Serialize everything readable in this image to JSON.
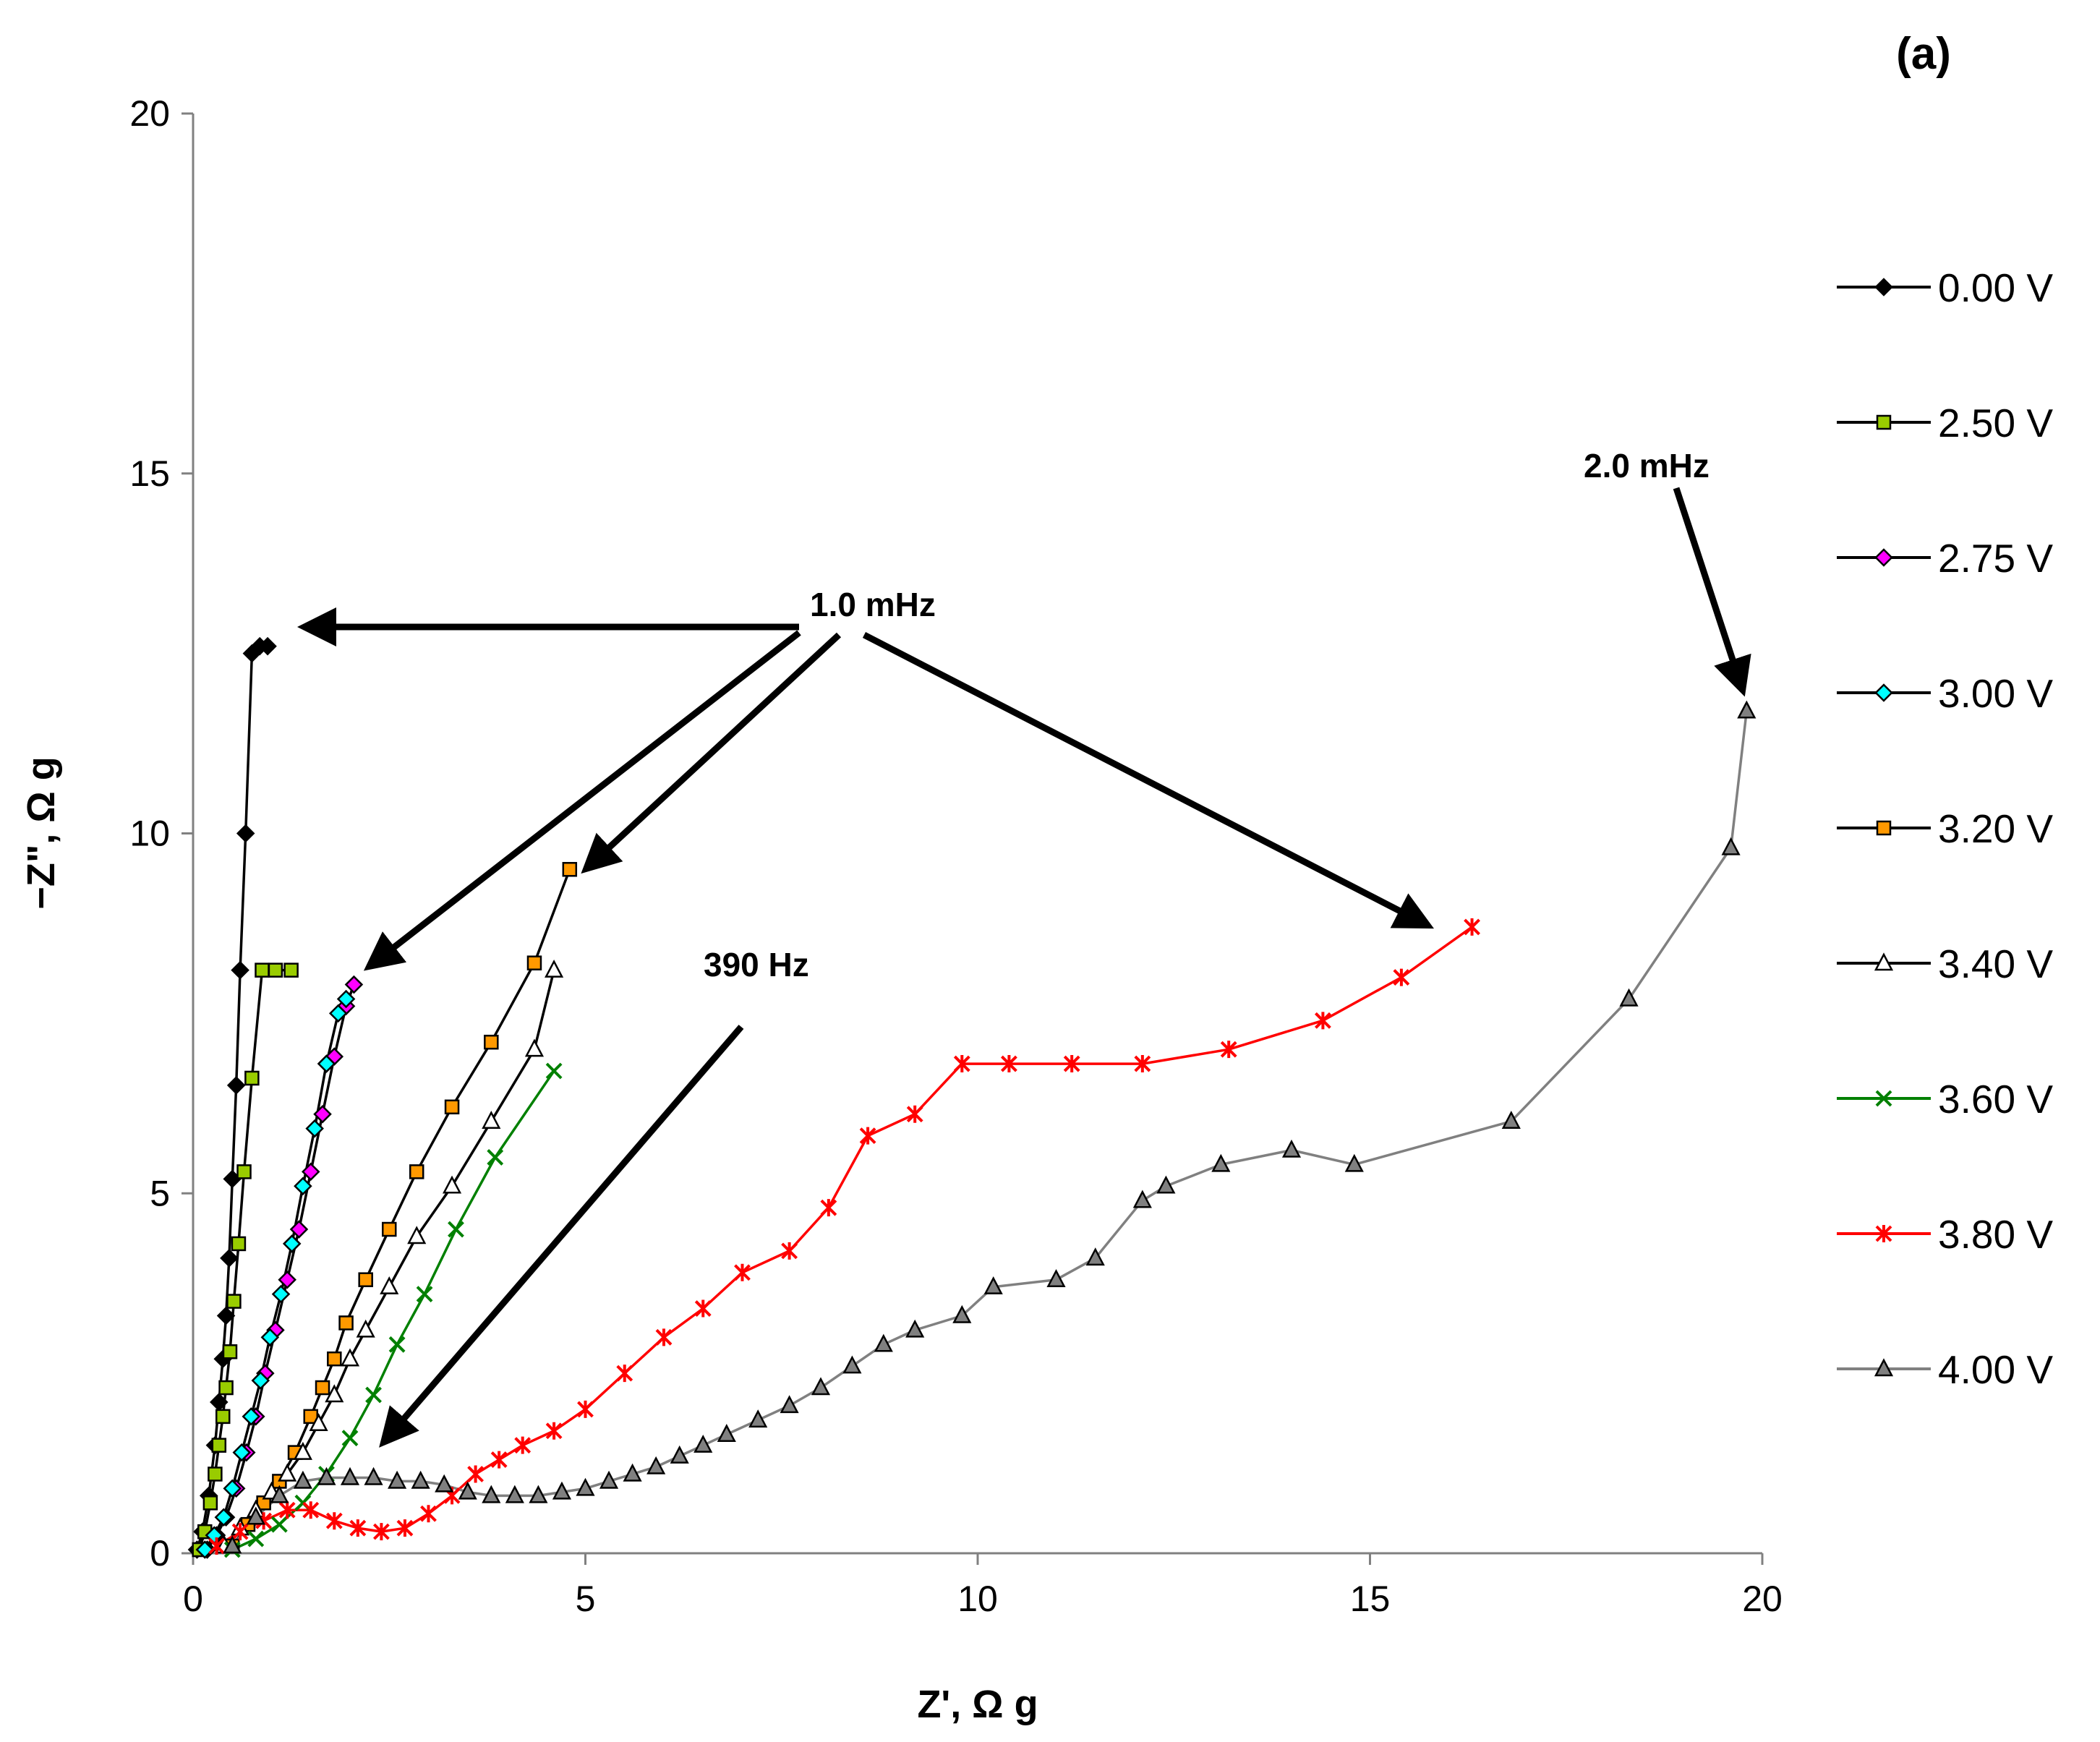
{
  "chart_data": {
    "type": "scatter",
    "panel_label": "(a)",
    "xlabel": "Z', Ω g",
    "ylabel": "−Z\", Ω g",
    "xlim": [
      0,
      20
    ],
    "ylim": [
      0,
      20
    ],
    "x_ticks": [
      0,
      5,
      10,
      15,
      20
    ],
    "y_ticks": [
      0,
      5,
      10,
      15,
      20
    ],
    "grid": false,
    "legend_position": "right",
    "series": [
      {
        "name": "0.00 V",
        "color": "#000000",
        "marker": "diamond",
        "fill": "#000000",
        "x": [
          0.05,
          0.12,
          0.2,
          0.28,
          0.33,
          0.38,
          0.42,
          0.46,
          0.5,
          0.55,
          0.6,
          0.67,
          0.75,
          0.85,
          0.95
        ],
        "y": [
          0.05,
          0.3,
          0.8,
          1.5,
          2.1,
          2.7,
          3.3,
          4.1,
          5.2,
          6.5,
          8.1,
          10.0,
          12.5,
          12.6,
          12.6
        ]
      },
      {
        "name": "2.50 V",
        "color": "#000000",
        "marker": "square",
        "fill": "#99CC00",
        "x": [
          0.08,
          0.15,
          0.22,
          0.28,
          0.33,
          0.38,
          0.42,
          0.47,
          0.52,
          0.58,
          0.65,
          0.75,
          0.88,
          1.05,
          1.25
        ],
        "y": [
          0.05,
          0.3,
          0.7,
          1.1,
          1.5,
          1.9,
          2.3,
          2.8,
          3.5,
          4.3,
          5.3,
          6.6,
          8.1,
          8.1,
          8.1
        ]
      },
      {
        "name": "2.75 V",
        "color": "#000000",
        "marker": "diamond",
        "fill": "#FF00FF",
        "x": [
          0.18,
          0.3,
          0.42,
          0.55,
          0.68,
          0.8,
          0.92,
          1.05,
          1.2,
          1.35,
          1.5,
          1.65,
          1.8,
          1.95,
          2.05
        ],
        "y": [
          0.05,
          0.25,
          0.5,
          0.9,
          1.4,
          1.9,
          2.5,
          3.1,
          3.8,
          4.5,
          5.3,
          6.1,
          6.9,
          7.6,
          7.9
        ]
      },
      {
        "name": "3.00 V",
        "color": "#000000",
        "marker": "diamond",
        "fill": "#00FFFF",
        "x": [
          0.15,
          0.27,
          0.39,
          0.5,
          0.62,
          0.74,
          0.86,
          0.98,
          1.12,
          1.26,
          1.4,
          1.55,
          1.7,
          1.85,
          1.95
        ],
        "y": [
          0.05,
          0.25,
          0.5,
          0.9,
          1.4,
          1.9,
          2.4,
          3.0,
          3.6,
          4.3,
          5.1,
          5.9,
          6.8,
          7.5,
          7.7
        ]
      },
      {
        "name": "3.20 V",
        "color": "#000000",
        "marker": "square",
        "fill": "#FF9900",
        "x": [
          0.5,
          0.7,
          0.9,
          1.1,
          1.3,
          1.5,
          1.65,
          1.8,
          1.95,
          2.2,
          2.5,
          2.85,
          3.3,
          3.8,
          4.35,
          4.8
        ],
        "y": [
          0.1,
          0.4,
          0.7,
          1.0,
          1.4,
          1.9,
          2.3,
          2.7,
          3.2,
          3.8,
          4.5,
          5.3,
          6.2,
          7.1,
          8.2,
          9.5
        ]
      },
      {
        "name": "3.40 V",
        "color": "#000000",
        "marker": "triangle",
        "fill": "#FFFFFF",
        "x": [
          0.4,
          0.6,
          0.8,
          1.0,
          1.2,
          1.4,
          1.6,
          1.8,
          2.0,
          2.2,
          2.5,
          2.85,
          3.3,
          3.8,
          4.35,
          4.6
        ],
        "y": [
          0.1,
          0.35,
          0.6,
          0.85,
          1.1,
          1.4,
          1.8,
          2.2,
          2.7,
          3.1,
          3.7,
          4.4,
          5.1,
          6.0,
          7.0,
          8.1
        ]
      },
      {
        "name": "3.60 V",
        "color": "#008000",
        "marker": "x",
        "fill": "none",
        "x": [
          0.5,
          0.8,
          1.1,
          1.4,
          1.7,
          2.0,
          2.3,
          2.6,
          2.95,
          3.35,
          3.85,
          4.6
        ],
        "y": [
          0.05,
          0.2,
          0.4,
          0.7,
          1.1,
          1.6,
          2.2,
          2.9,
          3.6,
          4.5,
          5.5,
          6.7
        ]
      },
      {
        "name": "3.80 V",
        "color": "#FF0000",
        "marker": "asterisk",
        "fill": "none",
        "x": [
          0.3,
          0.6,
          0.9,
          1.2,
          1.5,
          1.8,
          2.1,
          2.4,
          2.7,
          3.0,
          3.3,
          3.6,
          3.9,
          4.2,
          4.6,
          5.0,
          5.5,
          6.0,
          6.5,
          7.0,
          7.6,
          8.1,
          8.6,
          9.2,
          9.8,
          10.4,
          11.2,
          12.1,
          13.2,
          14.4,
          15.4,
          16.3
        ],
        "y": [
          0.1,
          0.3,
          0.45,
          0.6,
          0.6,
          0.45,
          0.35,
          0.3,
          0.35,
          0.55,
          0.8,
          1.1,
          1.3,
          1.5,
          1.7,
          2.0,
          2.5,
          3.0,
          3.4,
          3.9,
          4.2,
          4.8,
          5.8,
          6.1,
          6.8,
          6.8,
          6.8,
          6.8,
          7.0,
          7.4,
          8.0,
          8.7
        ]
      },
      {
        "name": "4.00 V",
        "color": "#808080",
        "marker": "triangle",
        "fill": "#808080",
        "x": [
          0.5,
          0.8,
          1.1,
          1.4,
          1.7,
          2.0,
          2.3,
          2.6,
          2.9,
          3.2,
          3.5,
          3.8,
          4.1,
          4.4,
          4.7,
          5.0,
          5.3,
          5.6,
          5.9,
          6.2,
          6.5,
          6.8,
          7.2,
          7.6,
          8.0,
          8.4,
          8.8,
          9.2,
          9.8,
          10.2,
          11.0,
          11.5,
          12.1,
          12.4,
          13.1,
          14.0,
          14.8,
          16.8,
          18.3,
          19.6,
          19.8
        ],
        "y": [
          0.1,
          0.5,
          0.8,
          1.0,
          1.05,
          1.05,
          1.05,
          1.0,
          1.0,
          0.95,
          0.85,
          0.8,
          0.8,
          0.8,
          0.85,
          0.9,
          1.0,
          1.1,
          1.2,
          1.35,
          1.5,
          1.65,
          1.85,
          2.05,
          2.3,
          2.6,
          2.9,
          3.1,
          3.3,
          3.7,
          3.8,
          4.1,
          4.9,
          5.1,
          5.4,
          5.6,
          5.4,
          6.0,
          7.7,
          9.8,
          11.7
        ]
      }
    ],
    "annotations": [
      {
        "text": "1.0 mHz",
        "x": 8.9,
        "y": 13.05
      },
      {
        "text": "390 Hz",
        "x": 7.3,
        "y": 8.1
      },
      {
        "text": "2.0 mHz",
        "x": 19.2,
        "y": 15.05
      }
    ]
  }
}
